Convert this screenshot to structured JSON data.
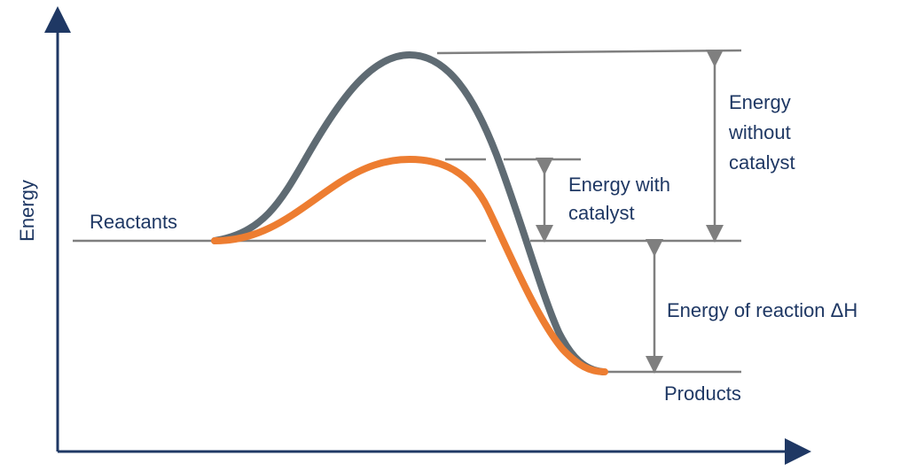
{
  "labels": {
    "y_axis": "Energy",
    "reactants": "Reactants",
    "products": "Products",
    "energy_without_catalyst": [
      "Energy",
      "without",
      "catalyst"
    ],
    "energy_with_catalyst": [
      "Energy with",
      "catalyst"
    ],
    "energy_of_reaction": "Energy of reaction ΔH"
  },
  "colors": {
    "axis": "#1f3864",
    "text": "#1f3864",
    "guide_line": "#7f7f7f",
    "uncatalyzed_curve": "#5f6b73",
    "catalyzed_curve": "#ed7d31"
  }
}
